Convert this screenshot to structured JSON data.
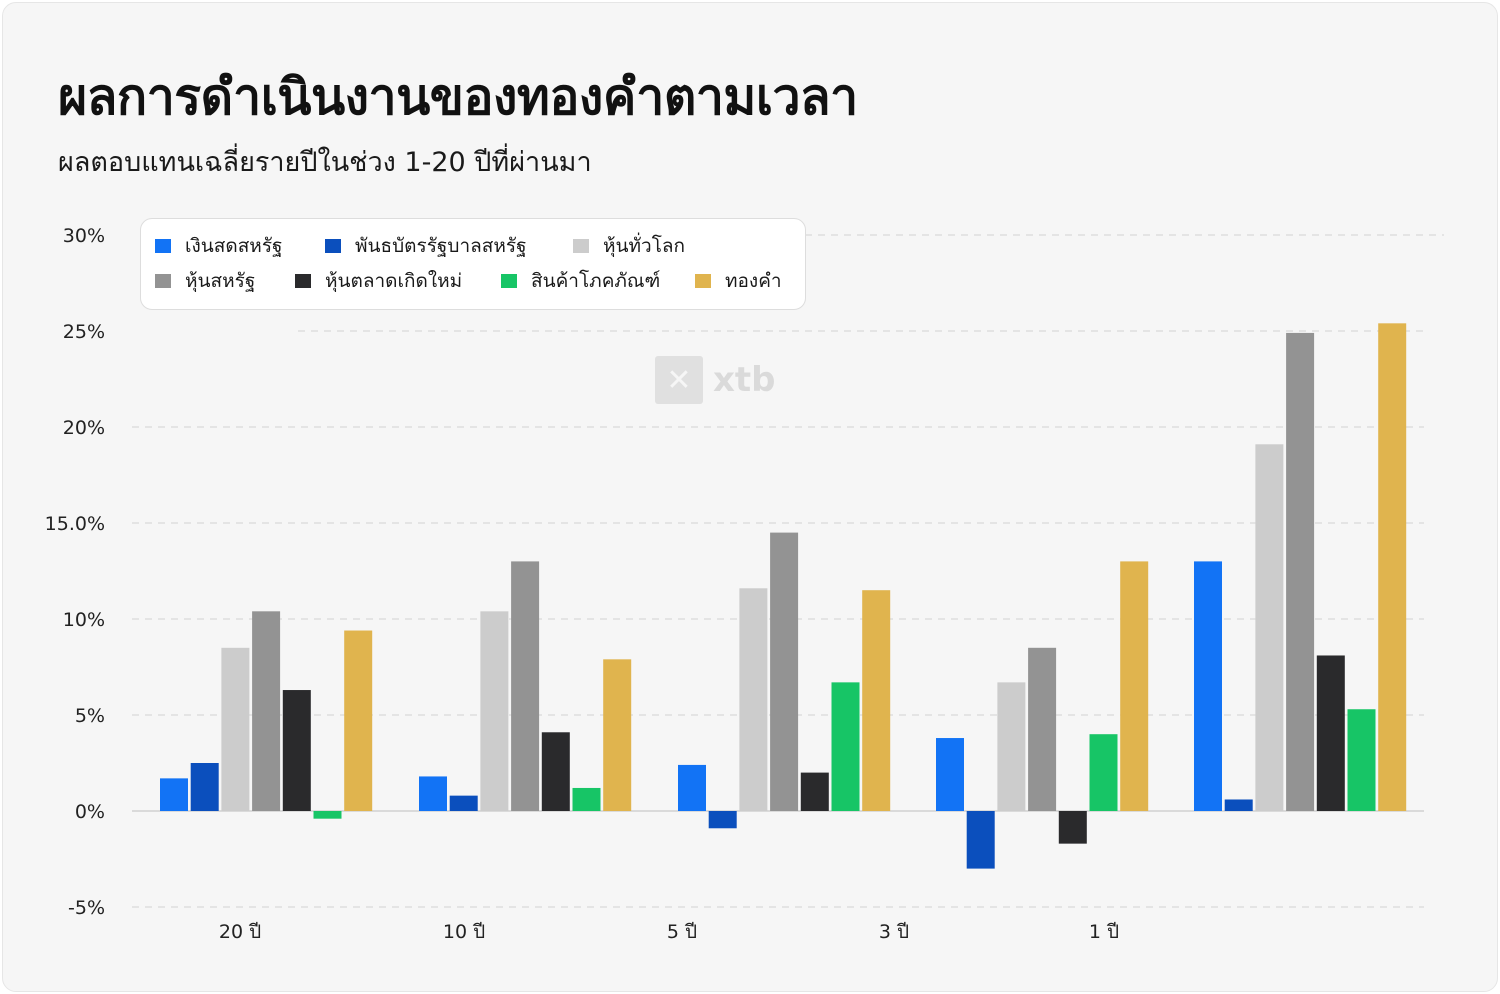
{
  "title": "ผลการดำเนินงานของทองคำตามเวลา",
  "subtitle": "ผลตอบแทนเฉลี่ยรายปีในช่วง 1-20 ปีที่ผ่านมา",
  "watermark": {
    "text": "xtb",
    "icon": "xtb-logo-icon"
  },
  "chart_data": {
    "type": "bar",
    "title": "ผลการดำเนินงานของทองคำตามเวลา",
    "subtitle": "ผลตอบแทนเฉลี่ยรายปีในช่วง 1-20 ปีที่ผ่านมา",
    "categories": [
      "20 ปี",
      "10 ปี",
      "5 ปี",
      "3 ปี",
      "1 ปี"
    ],
    "y_ticks": [
      "-5%",
      "0%",
      "5%",
      "10%",
      "15.0%",
      "20%",
      "25%",
      "30%"
    ],
    "y_tick_values": [
      -5,
      0,
      5,
      10,
      15,
      20,
      25,
      30
    ],
    "ylim": [
      -5,
      30
    ],
    "grid": true,
    "legend_position": "top-left",
    "series": [
      {
        "name": "เงินสดสหรัฐ",
        "color": "#1273f5",
        "values": [
          1.7,
          1.8,
          2.4,
          3.8,
          13.0
        ]
      },
      {
        "name": "พันธบัตรรัฐบาลสหรัฐ",
        "color": "#0b4fbd",
        "values": [
          2.5,
          0.8,
          -0.9,
          -3.0,
          0.6
        ]
      },
      {
        "name": "หุ้นทั่วโลก",
        "color": "#cccccc",
        "values": [
          8.5,
          10.4,
          11.6,
          6.7,
          19.1
        ]
      },
      {
        "name": "หุ้นสหรัฐ",
        "color": "#939393",
        "values": [
          10.4,
          13.0,
          14.5,
          8.5,
          24.9
        ]
      },
      {
        "name": "หุ้นตลาดเกิดใหม่",
        "color": "#2a2a2c",
        "values": [
          6.3,
          4.1,
          2.0,
          -1.7,
          8.1
        ]
      },
      {
        "name": "สินค้าโภคภัณฑ์",
        "color": "#17c566",
        "values": [
          -0.4,
          1.2,
          6.7,
          4.0,
          5.3
        ]
      },
      {
        "name": "ทองคำ",
        "color": "#e0b44e",
        "values": [
          9.4,
          7.9,
          11.5,
          13.0,
          25.4
        ]
      }
    ]
  }
}
